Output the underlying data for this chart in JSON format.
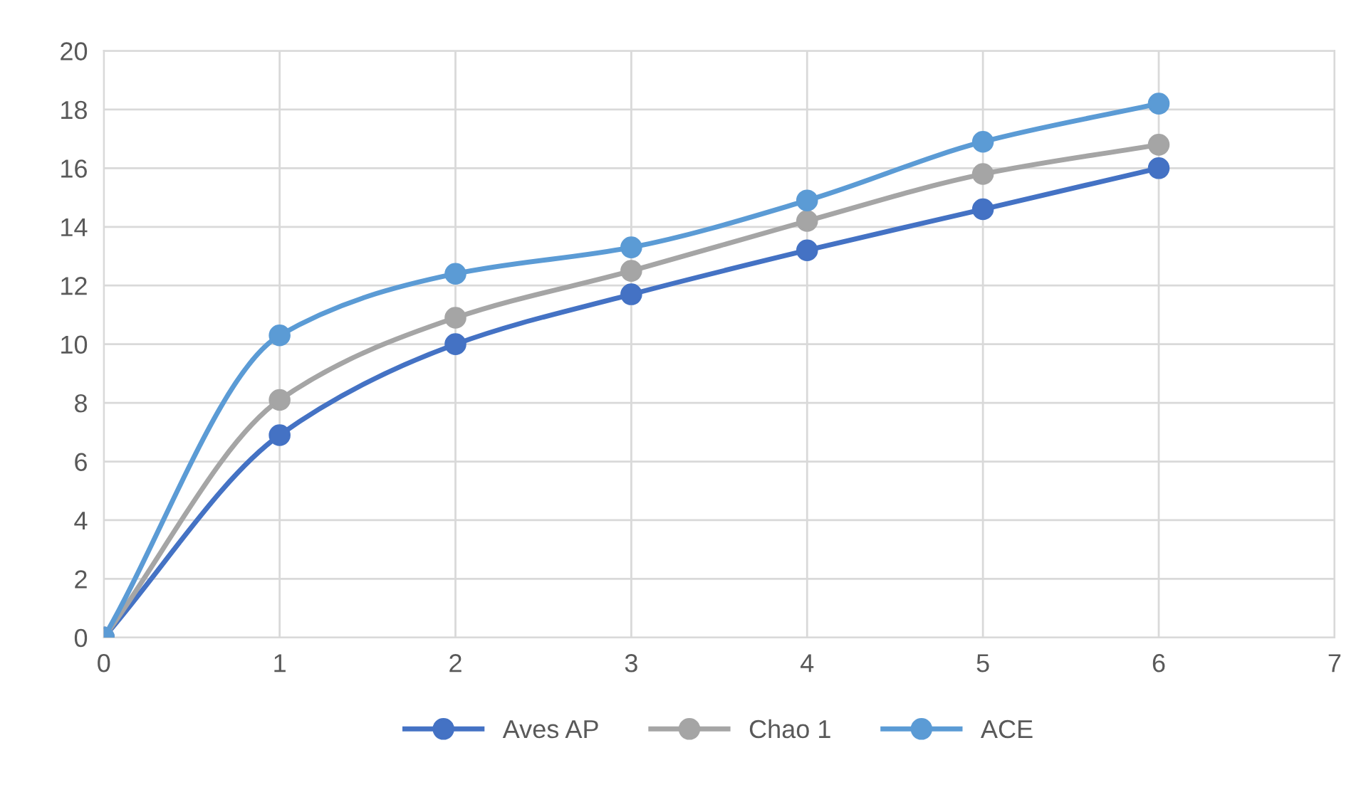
{
  "chart_data": {
    "type": "line",
    "x": [
      0,
      1,
      2,
      3,
      4,
      5,
      6
    ],
    "series": [
      {
        "name": "Aves AP",
        "color": "#4472c4",
        "values": [
          0,
          6.9,
          10.0,
          11.7,
          13.2,
          14.6,
          16.0
        ]
      },
      {
        "name": "Chao 1",
        "color": "#a5a5a5",
        "values": [
          0,
          8.1,
          10.9,
          12.5,
          14.2,
          15.8,
          16.8
        ]
      },
      {
        "name": "ACE",
        "color": "#5b9bd5",
        "values": [
          0,
          10.3,
          12.4,
          13.3,
          14.9,
          16.9,
          18.2
        ]
      }
    ],
    "xlim": [
      0,
      7
    ],
    "xticks": [
      0,
      1,
      2,
      3,
      4,
      5,
      6,
      7
    ],
    "ylim": [
      0,
      20
    ],
    "yticks": [
      0,
      2,
      4,
      6,
      8,
      10,
      12,
      14,
      16,
      18,
      20
    ],
    "grid": true,
    "legend": "bottom",
    "marker": "circle",
    "line_style": "solid"
  }
}
